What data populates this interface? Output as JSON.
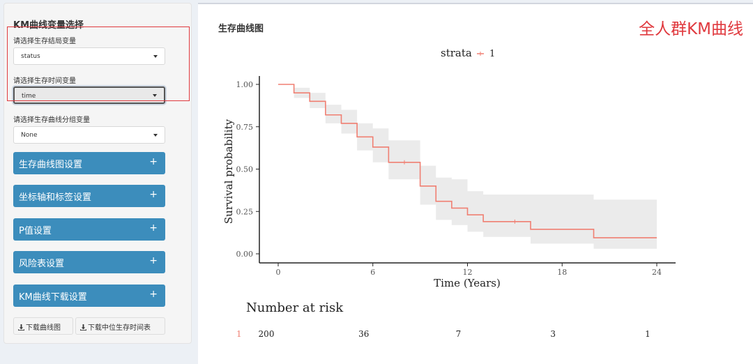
{
  "sidebar": {
    "title": "KM曲线变量选择",
    "fields": [
      {
        "label": "请选择生存结局变量",
        "value": "status"
      },
      {
        "label": "请选择生存时间变量",
        "value": "time"
      },
      {
        "label": "请选择生存曲线分组变量",
        "value": "None"
      }
    ],
    "panels": [
      {
        "label": "生存曲线图设置"
      },
      {
        "label": "坐标轴和标签设置"
      },
      {
        "label": "P值设置"
      },
      {
        "label": "风险表设置"
      },
      {
        "label": "KM曲线下载设置"
      }
    ],
    "panel_icon": "+",
    "buttons": [
      {
        "label": "下载曲线图",
        "icon": "download-icon"
      },
      {
        "label": "下载中位生存时间表",
        "icon": "download-icon"
      }
    ]
  },
  "main": {
    "title": "生存曲线图",
    "overlay_label": "全人群KM曲线"
  },
  "colors": {
    "accent": "#3c8dbc",
    "highlight": "#e0393e",
    "curve": "#f07f72",
    "ci": "#ebebeb"
  },
  "chart_data": {
    "type": "line",
    "legend": {
      "title": "strata",
      "entries": [
        "1"
      ],
      "position": "top"
    },
    "xlabel": "Time (Years)",
    "ylabel": "Survival probability",
    "xlim": [
      0,
      24
    ],
    "ylim": [
      0,
      1
    ],
    "xticks": [
      0,
      6,
      12,
      18,
      24
    ],
    "yticks": [
      0,
      0.25,
      0.5,
      0.75,
      1.0
    ],
    "ytick_labels": [
      "0.00",
      "0.25",
      "0.50",
      "0.75",
      "1.00"
    ],
    "series": [
      {
        "steps": [
          [
            0,
            1.0
          ],
          [
            1,
            0.95
          ],
          [
            2,
            0.9
          ],
          [
            3,
            0.82
          ],
          [
            4,
            0.77
          ],
          [
            5,
            0.69
          ],
          [
            6,
            0.63
          ],
          [
            7,
            0.54
          ],
          [
            9,
            0.4
          ],
          [
            10,
            0.31
          ],
          [
            11,
            0.27
          ],
          [
            12,
            0.23
          ],
          [
            13,
            0.19
          ],
          [
            16,
            0.145
          ],
          [
            20,
            0.095
          ],
          [
            24,
            0.095
          ]
        ],
        "ci_lower": [
          1.0,
          0.92,
          0.86,
          0.77,
          0.71,
          0.61,
          0.54,
          0.44,
          0.29,
          0.2,
          0.17,
          0.13,
          0.1,
          0.06,
          0.03,
          0.03
        ],
        "ci_upper": [
          1.0,
          0.98,
          0.95,
          0.88,
          0.85,
          0.77,
          0.74,
          0.67,
          0.52,
          0.45,
          0.44,
          0.37,
          0.35,
          0.35,
          0.32,
          0.32
        ],
        "censor_marks": [
          [
            8,
            0.54
          ],
          [
            15,
            0.19
          ]
        ]
      }
    ],
    "risk_table": {
      "title": "Number at risk",
      "strata_label": "1",
      "times": [
        0,
        6,
        12,
        18,
        24
      ],
      "counts": [
        "200",
        "36",
        "7",
        "3",
        "1"
      ]
    }
  }
}
